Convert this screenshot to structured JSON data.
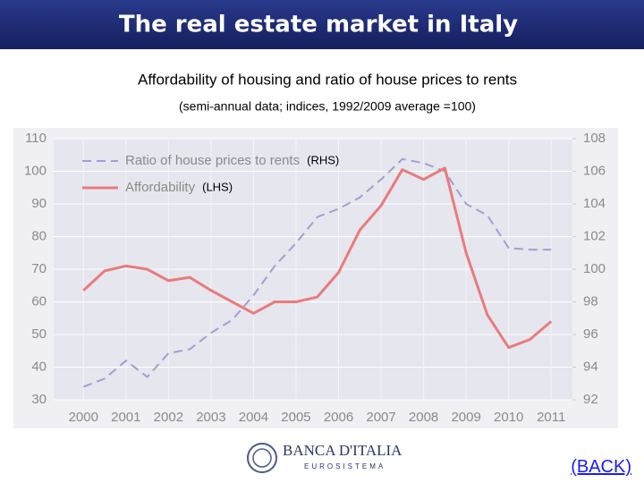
{
  "header": {
    "title": "The real estate market in Italy"
  },
  "chart_data": {
    "type": "line",
    "title": "Affordability of housing and ratio of house prices to rents",
    "subtitle": "(semi-annual data; indices, 1992/2009 average =100)",
    "x": [
      2000,
      2000.5,
      2001,
      2001.5,
      2002,
      2002.5,
      2003,
      2003.5,
      2004,
      2004.5,
      2005,
      2005.5,
      2006,
      2006.5,
      2007,
      2007.5,
      2008,
      2008.5,
      2009,
      2009.5,
      2010,
      2010.5,
      2011
    ],
    "xlim": [
      1999.3,
      2011.5
    ],
    "xticks": [
      2000,
      2001,
      2002,
      2003,
      2004,
      2005,
      2006,
      2007,
      2008,
      2009,
      2010,
      2011
    ],
    "ylim": [
      30,
      110
    ],
    "yticks": [
      30,
      40,
      50,
      60,
      70,
      80,
      90,
      100,
      110
    ],
    "y2lim": [
      92,
      108
    ],
    "y2ticks": [
      92,
      94,
      96,
      98,
      100,
      102,
      104,
      106,
      108
    ],
    "grid": true,
    "series": [
      {
        "name": "Ratio of house prices to rents",
        "color": "#9ea0d2",
        "dashed": true,
        "axis": "y2",
        "values": [
          92.8,
          93.3,
          94.4,
          93.4,
          94.85,
          95.1,
          96.1,
          96.9,
          98.4,
          100.2,
          101.6,
          103.2,
          103.7,
          104.4,
          105.5,
          106.75,
          106.5,
          106.0,
          104.0,
          103.3,
          101.3,
          101.2,
          101.2
        ]
      },
      {
        "name": "Affordability",
        "color": "#e97b7c",
        "dashed": false,
        "axis": "y",
        "values": [
          63.5,
          69.5,
          71,
          70,
          66.5,
          67.5,
          63.5,
          60,
          56.5,
          60,
          60,
          61.5,
          69,
          82,
          89.5,
          100.5,
          97.5,
          101,
          75,
          56,
          46,
          48.5,
          54
        ]
      }
    ],
    "annotations": [
      "(RHS)",
      "(LHS)"
    ]
  },
  "footer": {
    "logo": "BANCA D'ITALIA",
    "logo_sub": "EUROSISTEMA",
    "link": "(BACK)"
  }
}
